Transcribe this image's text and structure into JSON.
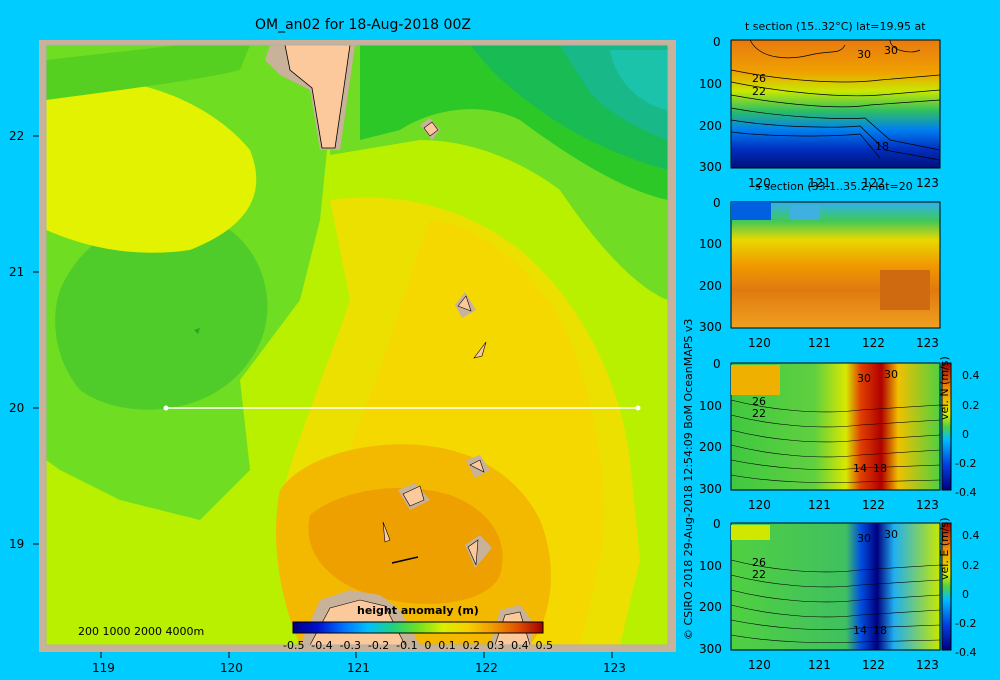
{
  "chart_data": [
    {
      "type": "heatmap",
      "title": "OM_an02 for 18-Aug-2018 00Z",
      "x_ticks": [
        "119",
        "120",
        "121",
        "122",
        "123"
      ],
      "y_ticks": [
        "22",
        "21",
        "20",
        "19"
      ],
      "xlim": [
        118.5,
        123.5
      ],
      "ylim": [
        18.2,
        22.7
      ],
      "section_line": {
        "lat": 20,
        "lon_start": 119.5,
        "lon_end": 123.2
      },
      "depth_legend": "200 1000 2000 4000m",
      "colorbar": {
        "label": "height anomaly (m)",
        "ticks": [
          "-0.5",
          "-0.4",
          "-0.3",
          "-0.2",
          "-0.1",
          "0",
          "0.1",
          "0.2",
          "0.3",
          "0.4",
          "0.5"
        ],
        "range": [
          -0.5,
          0.5
        ]
      }
    },
    {
      "type": "heatmap",
      "title": "t section (15..32°C) lat=19.95 at",
      "x_ticks": [
        "120",
        "121",
        "122",
        "123"
      ],
      "y_ticks": [
        "0",
        "100",
        "200",
        "300"
      ],
      "contour_labels": [
        "30",
        "30",
        "26",
        "22",
        "18"
      ]
    },
    {
      "type": "heatmap",
      "title": "s section (33.1..35.2) lat=20",
      "x_ticks": [
        "120",
        "121",
        "122",
        "123"
      ],
      "y_ticks": [
        "0",
        "100",
        "200",
        "300"
      ]
    },
    {
      "type": "heatmap",
      "x_ticks": [
        "120",
        "121",
        "122",
        "123"
      ],
      "y_ticks": [
        "0",
        "100",
        "200",
        "300"
      ],
      "contour_labels": [
        "30",
        "30",
        "26",
        "22",
        "14",
        "18"
      ],
      "colorbar": {
        "label": "vel. N (m/s)",
        "ticks": [
          "0.4",
          "0.2",
          "0",
          "-0.2",
          "-0.4"
        ],
        "range": [
          -0.4,
          0.4
        ]
      }
    },
    {
      "type": "heatmap",
      "x_ticks": [
        "120",
        "121",
        "122",
        "123"
      ],
      "y_ticks": [
        "0",
        "100",
        "200",
        "300"
      ],
      "contour_labels": [
        "30",
        "30",
        "26",
        "22",
        "14",
        "18"
      ],
      "colorbar": {
        "label": "vel. E (m/s)",
        "ticks": [
          "0.4",
          "0.2",
          "0",
          "-0.2",
          "-0.4"
        ],
        "range": [
          -0.4,
          0.4
        ]
      }
    }
  ],
  "credit": "© CSIRO 2018   29-Aug-2018 12:54:09 BoM OceanMAPS v3"
}
